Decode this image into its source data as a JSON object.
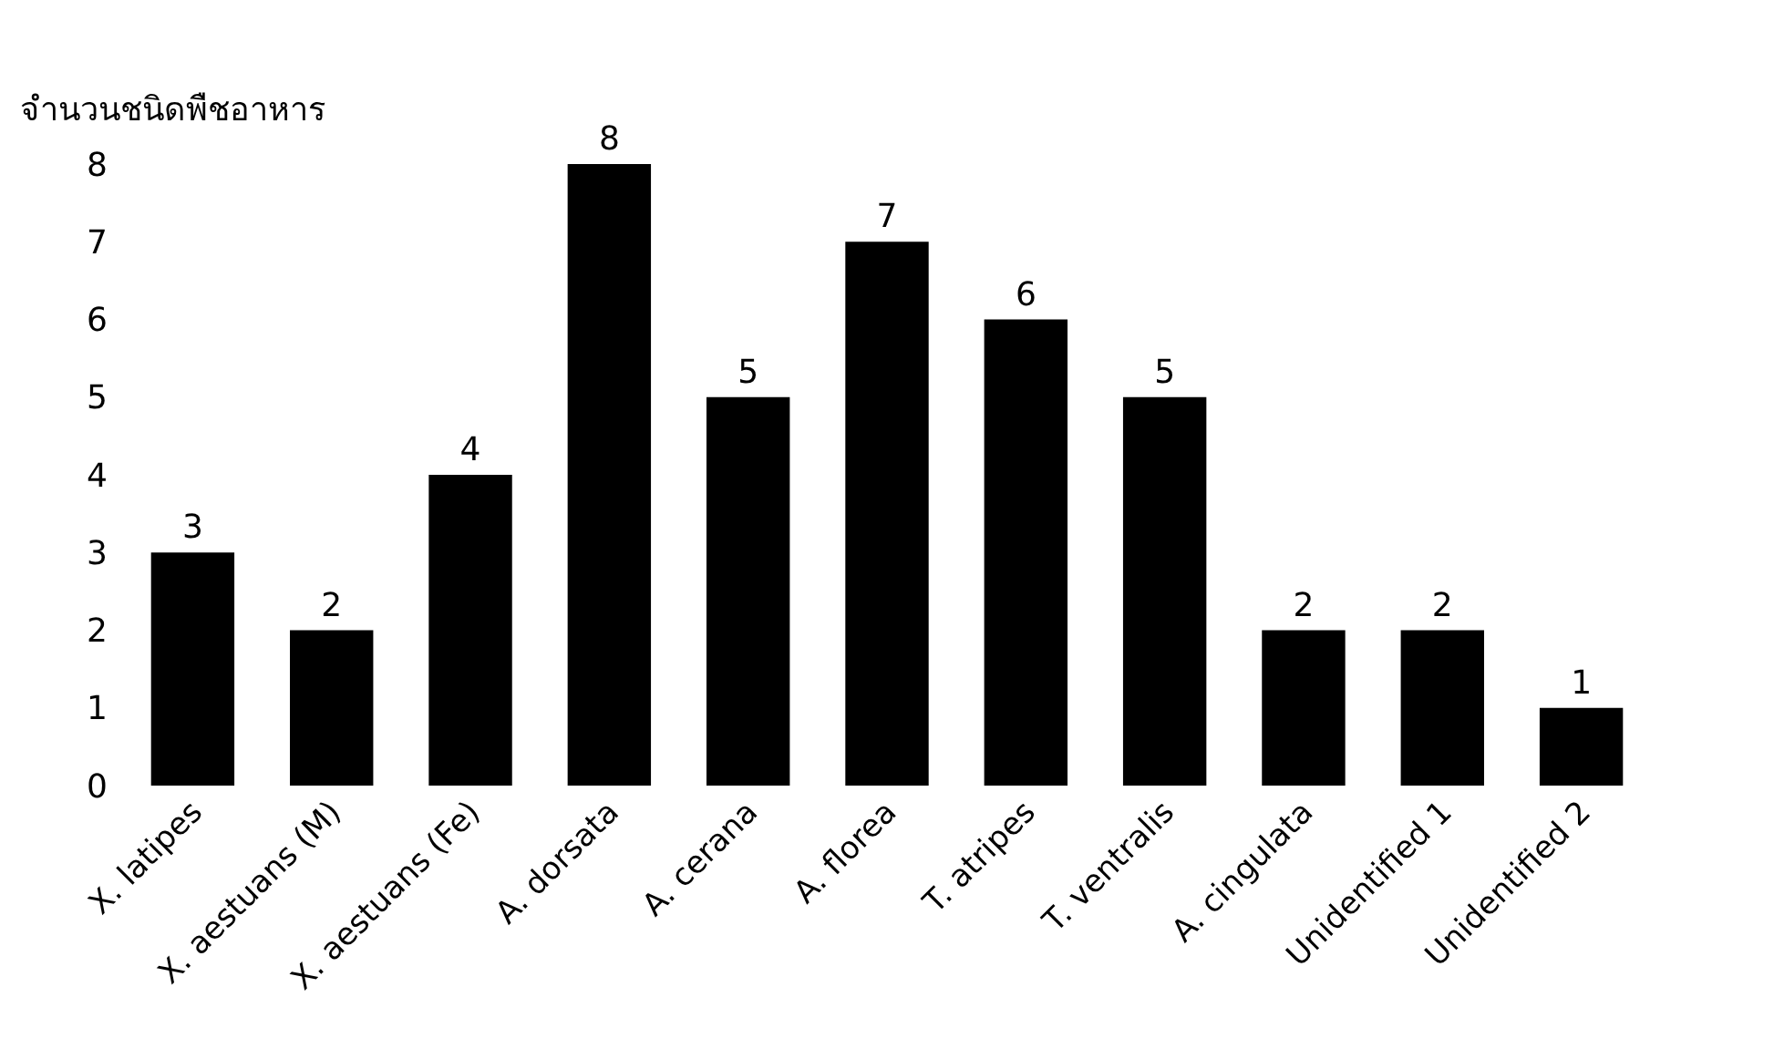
{
  "chart_data": {
    "type": "bar",
    "ylabel": "จำนวนชนิดพืชอาหาร",
    "categories": [
      "X. latipes",
      "X. aestuans (M)",
      "X. aestuans (Fe)",
      "A. dorsata",
      "A. cerana",
      "A. florea",
      "T. atripes",
      "T. ventralis",
      "A. cingulata",
      "Unidentified 1",
      "Unidentified 2"
    ],
    "values": [
      3,
      2,
      4,
      8,
      5,
      7,
      6,
      5,
      2,
      2,
      1
    ],
    "color": "#000000",
    "ylim": [
      0,
      8
    ],
    "yticks": [
      0,
      1,
      2,
      3,
      4,
      5,
      6,
      7,
      8
    ],
    "data_labels": true,
    "legend": false
  }
}
